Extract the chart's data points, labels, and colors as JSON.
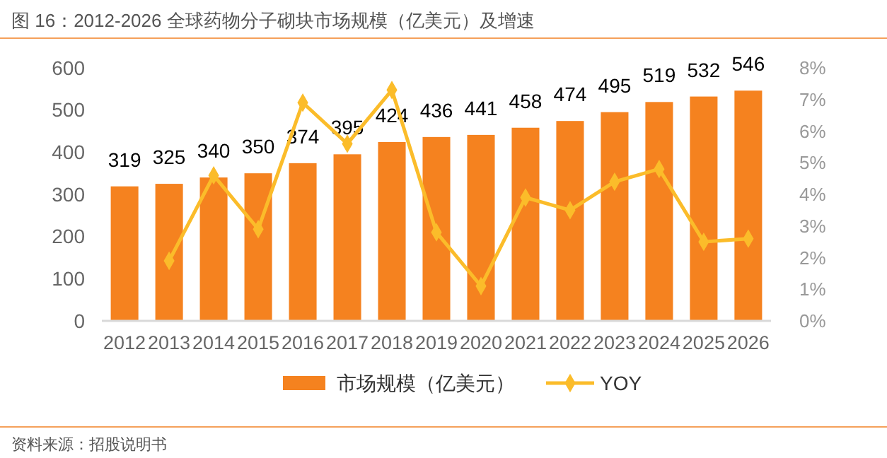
{
  "chart_data": {
    "type": "bar",
    "title": "图 16：2012-2026 全球药物分子砌块市场规模（亿美元）及增速",
    "categories": [
      "2012",
      "2013",
      "2014",
      "2015",
      "2016",
      "2017",
      "2018",
      "2019",
      "2020",
      "2021",
      "2022",
      "2023",
      "2024",
      "2025",
      "2026"
    ],
    "series": [
      {
        "name": "市场规模（亿美元）",
        "color": "#f5821f",
        "values": [
          319,
          325,
          340,
          350,
          374,
          395,
          424,
          436,
          441,
          458,
          474,
          495,
          519,
          532,
          546
        ],
        "value_labels": [
          "319",
          "325",
          "340",
          "350",
          "374",
          "395",
          "424",
          "436",
          "441",
          "458",
          "474",
          "495",
          "519",
          "532",
          "546"
        ]
      },
      {
        "name": "YOY",
        "type": "line",
        "axis": "y2",
        "color": "#fbbc2a",
        "marker": "diamond",
        "values": [
          null,
          1.9,
          4.6,
          2.9,
          6.9,
          5.6,
          7.3,
          2.8,
          1.1,
          3.9,
          3.5,
          4.4,
          4.8,
          2.5,
          2.6
        ]
      }
    ],
    "ylim": [
      0,
      600
    ],
    "yticks": [
      0,
      100,
      200,
      300,
      400,
      500,
      600
    ],
    "y2lim": [
      0,
      8
    ],
    "y2ticks": [
      {
        "value": 0,
        "label": "0%"
      },
      {
        "value": 1,
        "label": "1%"
      },
      {
        "value": 2,
        "label": "2%"
      },
      {
        "value": 3,
        "label": "3%"
      },
      {
        "value": 4,
        "label": "4%"
      },
      {
        "value": 5,
        "label": "5%"
      },
      {
        "value": 6,
        "label": "6%"
      },
      {
        "value": 7,
        "label": "7%"
      },
      {
        "value": 8,
        "label": "8%"
      }
    ],
    "grid": false,
    "legend": "bottom",
    "annotations": [
      "资料来源：招股说明书"
    ]
  }
}
